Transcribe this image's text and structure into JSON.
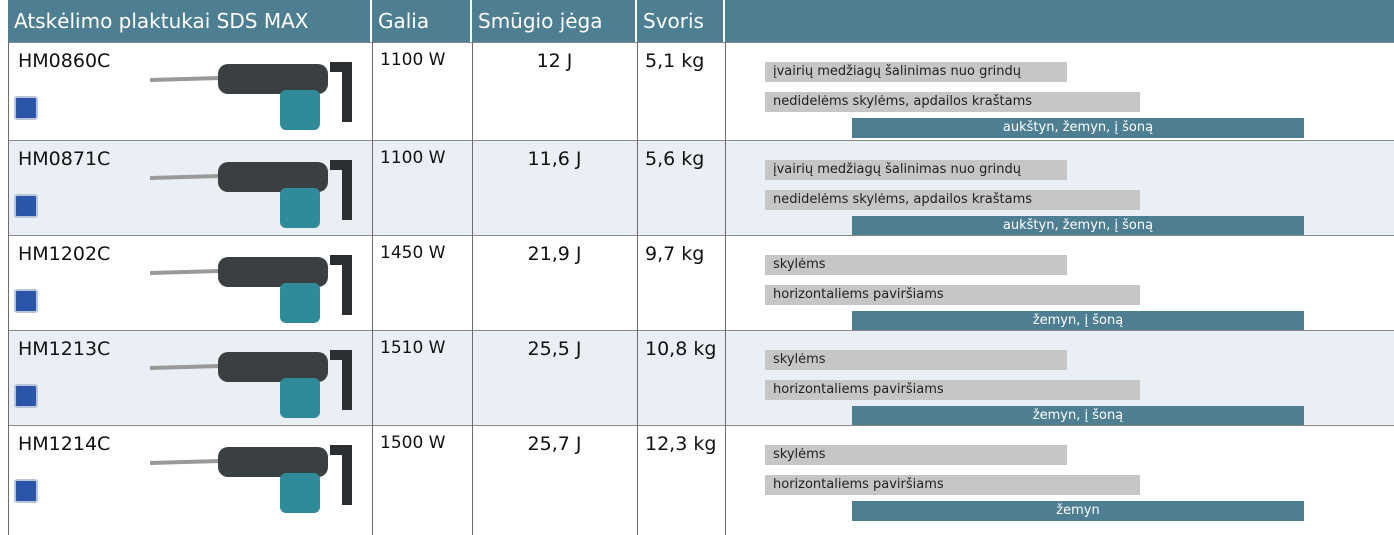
{
  "header": {
    "columns": [
      "Atskėlimo plaktukai SDS MAX",
      "Galia",
      "Smūgio jėga",
      "Svoris"
    ]
  },
  "table": {
    "rows": [
      {
        "model": "HM0860C",
        "power": "1100 W",
        "impact": "12 J",
        "weight": "5,1 kg",
        "uses": [
          "įvairių medžiagų šalinimas nuo grindų",
          "nedidelėms skylėms, apdailos kraštams",
          "aukštyn, žemyn, į šoną"
        ]
      },
      {
        "model": "HM0871C",
        "power": "1100 W",
        "impact": "11,6 J",
        "weight": "5,6 kg",
        "uses": [
          "įvairių medžiagų šalinimas nuo grindų",
          "nedidelėms skylėms, apdailos kraštams",
          "aukštyn, žemyn, į šoną"
        ]
      },
      {
        "model": "HM1202C",
        "power": "1450 W",
        "impact": "21,9 J",
        "weight": "9,7 kg",
        "uses": [
          "skylėms",
          "horizontaliems paviršiams",
          "žemyn, į šoną"
        ]
      },
      {
        "model": "HM1213C",
        "power": "1510 W",
        "impact": "25,5 J",
        "weight": "10,8 kg",
        "uses": [
          "skylėms",
          "horizontaliems paviršiams",
          "žemyn, į šoną"
        ]
      },
      {
        "model": "HM1214C",
        "power": "1500 W",
        "impact": "25,7 J",
        "weight": "12,3 kg",
        "uses": [
          "skylėms",
          "horizontaliems paviršiams",
          "žemyn"
        ]
      }
    ]
  }
}
